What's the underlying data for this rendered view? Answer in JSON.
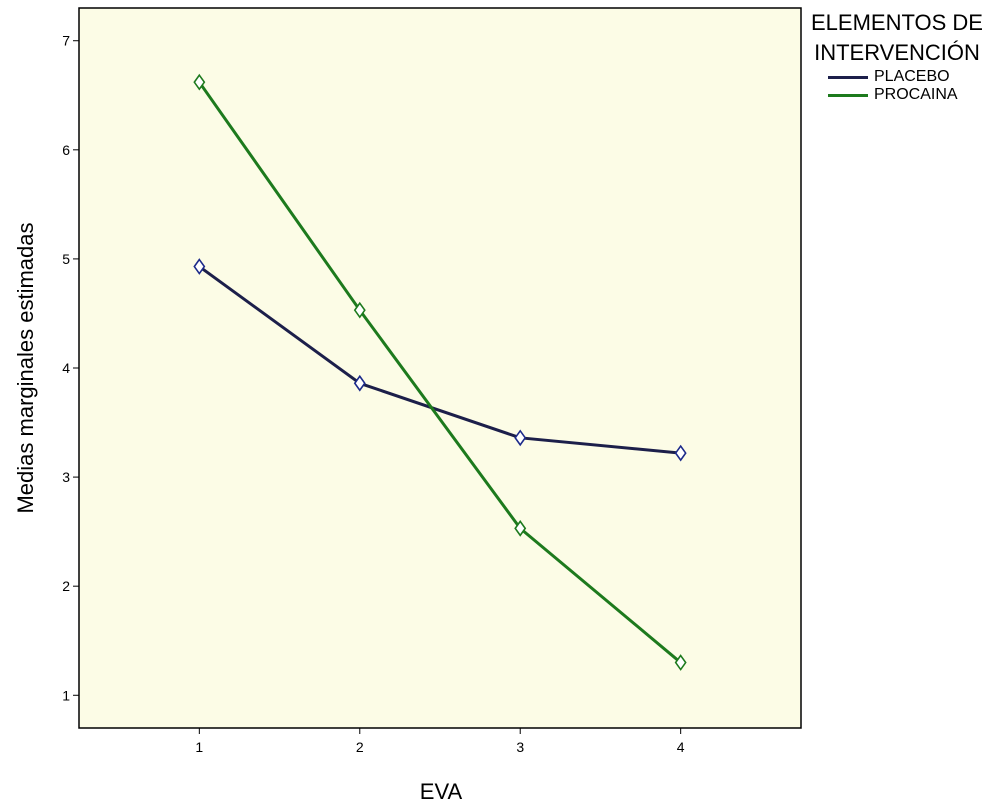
{
  "chart_data": {
    "type": "line",
    "x": [
      1,
      2,
      3,
      4
    ],
    "xticks": [
      "1",
      "2",
      "3",
      "4"
    ],
    "xlim": [
      0.25,
      4.75
    ],
    "ylim": [
      0.7,
      7.3
    ],
    "yticks": [
      1,
      2,
      3,
      4,
      5,
      6,
      7
    ],
    "xlabel": "EVA",
    "ylabel": "Medias marginales estimadas",
    "legend_title": "ELEMENTOS DE INTERVENCIÓN",
    "legend_position": "top-right, outside plot",
    "plot_background": "#fcfce6",
    "marker": "open-diamond",
    "grid": false,
    "series": [
      {
        "name": "PLACEBO",
        "color": "#1c1f4a",
        "values": [
          4.93,
          3.86,
          3.36,
          3.22
        ]
      },
      {
        "name": "PROCAINA",
        "color": "#1d7a1d",
        "values": [
          6.62,
          4.53,
          2.53,
          1.3
        ]
      }
    ]
  }
}
